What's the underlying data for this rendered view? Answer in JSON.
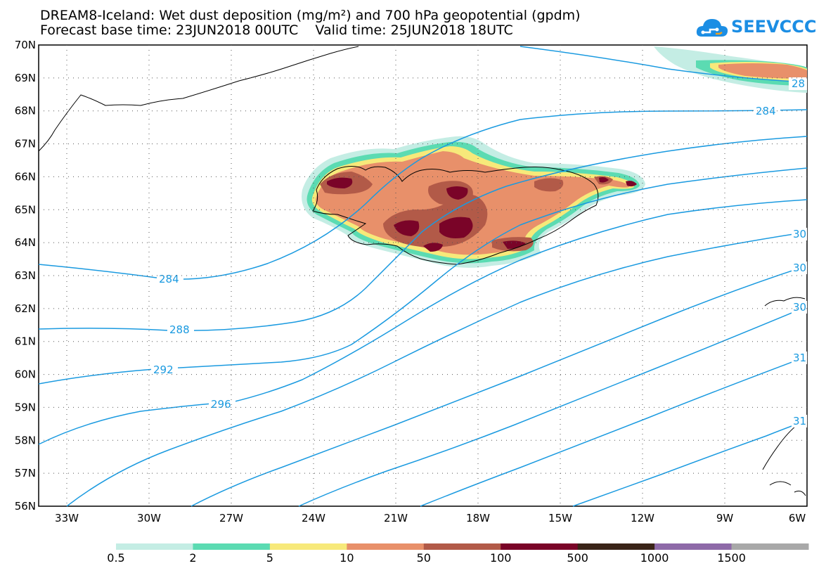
{
  "header": {
    "title_line1": "DREAM8-Iceland: Wet dust deposition (mg/m²) and 700 hPa geopotential (gpdm)",
    "title_line2": "Forecast base time: 23JUN2018 00UTC    Valid time: 25JUN2018 18UTC"
  },
  "logo": {
    "text": "SEEVCCC",
    "icon": "cloud-icon"
  },
  "map": {
    "lat_labels": [
      "70N",
      "69N",
      "68N",
      "67N",
      "66N",
      "65N",
      "64N",
      "63N",
      "62N",
      "61N",
      "60N",
      "59N",
      "58N",
      "57N",
      "56N"
    ],
    "lon_labels": [
      "33W",
      "30W",
      "27W",
      "24W",
      "21W",
      "18W",
      "15W",
      "12W",
      "9W",
      "6W"
    ],
    "contour_labels": [
      "284",
      "288",
      "292",
      "296",
      "284",
      "28",
      "30",
      "30",
      "30",
      "31",
      "31"
    ],
    "colors": {
      "contour": "#1a9ae0",
      "coast": "#000000"
    }
  },
  "legend": {
    "labels": [
      "0.5",
      "2",
      "5",
      "10",
      "50",
      "100",
      "500",
      "1000",
      "1500"
    ],
    "colors": [
      "#c4ede4",
      "#5bdbb2",
      "#f7e97a",
      "#e8906a",
      "#b25a48",
      "#7a0428",
      "#3a2418",
      "#8e6aa8",
      "#a8a8a8"
    ]
  }
}
